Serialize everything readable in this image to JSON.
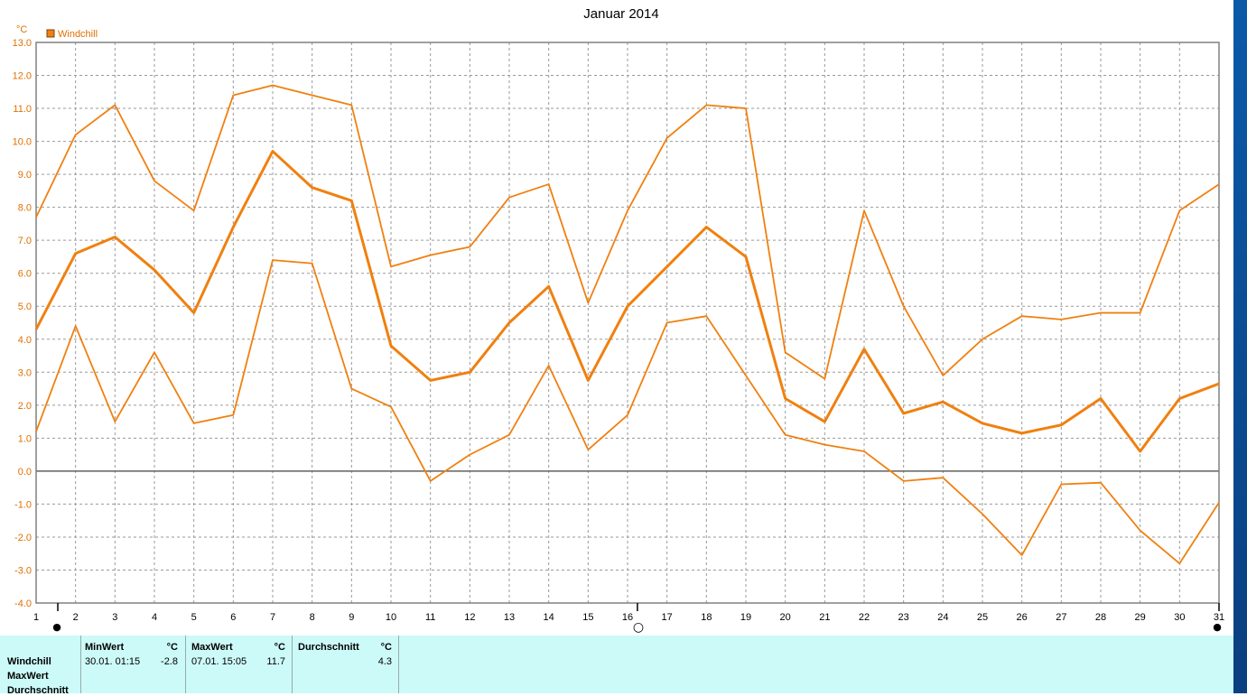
{
  "chart_data": {
    "type": "line",
    "title": "Januar 2014",
    "unit": "°C",
    "legend": [
      "Windchill"
    ],
    "legend_placement": "top-left",
    "ylim": [
      -4.0,
      13.0
    ],
    "y_ticks": [
      "13.0",
      "12.0",
      "11.0",
      "10.0",
      "9.0",
      "8.0",
      "7.0",
      "6.0",
      "5.0",
      "4.0",
      "3.0",
      "2.0",
      "1.0",
      "0.0",
      "-1.0",
      "-2.0",
      "-3.0",
      "-4.0"
    ],
    "x": [
      1,
      2,
      3,
      4,
      5,
      6,
      7,
      8,
      9,
      10,
      11,
      12,
      13,
      14,
      15,
      16,
      17,
      18,
      19,
      20,
      21,
      22,
      23,
      24,
      25,
      26,
      27,
      28,
      29,
      30,
      31
    ],
    "grid": true,
    "color": "#f08010",
    "series": [
      {
        "values": [
          7.7,
          10.2,
          11.1,
          8.8,
          7.9,
          11.4,
          11.7,
          11.4,
          11.1,
          6.2,
          6.55,
          6.8,
          8.3,
          8.7,
          5.1,
          7.9,
          10.1,
          11.1,
          11.0,
          3.6,
          2.8,
          7.9,
          5.0,
          2.9,
          4.0,
          4.7,
          4.6,
          4.8,
          4.8,
          7.9,
          8.7
        ]
      },
      {
        "values": [
          4.3,
          6.6,
          7.1,
          6.1,
          4.8,
          7.4,
          9.7,
          8.6,
          8.2,
          3.8,
          2.75,
          3.0,
          4.5,
          5.6,
          2.75,
          5.0,
          6.2,
          7.4,
          6.5,
          2.2,
          1.5,
          3.7,
          1.75,
          2.1,
          1.45,
          1.15,
          1.4,
          2.2,
          0.6,
          2.2,
          2.65
        ]
      },
      {
        "values": [
          1.2,
          4.4,
          1.5,
          3.6,
          1.45,
          1.7,
          6.4,
          6.3,
          2.5,
          1.95,
          -0.3,
          0.5,
          1.1,
          3.2,
          0.65,
          1.7,
          4.5,
          4.7,
          2.9,
          1.1,
          0.8,
          0.6,
          -0.3,
          -0.2,
          -1.3,
          -2.55,
          -0.4,
          -0.35,
          -1.8,
          -2.8,
          -0.95
        ]
      }
    ]
  },
  "markers": {
    "moon_full": "○",
    "moon_new": "●"
  },
  "info": {
    "rows": [
      "Windchill",
      "MaxWert",
      "Durchschnitt"
    ],
    "min": {
      "header": "MinWert",
      "unit": "°C",
      "date": "30.01.  01:15",
      "value": "-2.8"
    },
    "max": {
      "header": "MaxWert",
      "unit": "°C",
      "date": "07.01.  15:05",
      "value": "11.7"
    },
    "avg": {
      "header": "Durchschnitt",
      "unit": "°C",
      "value": "4.3"
    }
  }
}
